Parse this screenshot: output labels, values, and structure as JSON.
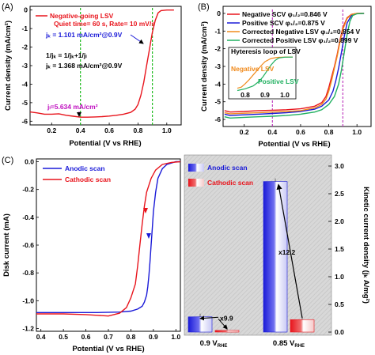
{
  "chart_data": [
    {
      "id": "A",
      "panel_label": "(A)",
      "type": "line",
      "xlabel": "Potential (V vs RHE)",
      "ylabel": "Current density (mA/cm²)",
      "xlim": [
        0.05,
        1.1
      ],
      "ylim": [
        -6.2,
        0.2
      ],
      "xticks": [
        "0.2",
        "0.4",
        "0.6",
        "0.8",
        "1.0"
      ],
      "xtick_values": [
        0.2,
        0.4,
        0.6,
        0.8,
        1.0
      ],
      "yticks": [
        "0",
        "-1",
        "-2",
        "-3",
        "-4",
        "-5",
        "-6"
      ],
      "ytick_values": [
        0,
        -1,
        -2,
        -3,
        -4,
        -5,
        -6
      ],
      "series": [
        {
          "name": "Negative-going LSV",
          "color": "#e8141c",
          "points": [
            [
              0.05,
              -5.5
            ],
            [
              0.1,
              -5.55
            ],
            [
              0.15,
              -5.62
            ],
            [
              0.2,
              -5.62
            ],
            [
              0.25,
              -5.6
            ],
            [
              0.3,
              -5.68
            ],
            [
              0.35,
              -5.73
            ],
            [
              0.4,
              -5.78
            ],
            [
              0.45,
              -5.78
            ],
            [
              0.5,
              -5.77
            ],
            [
              0.55,
              -5.75
            ],
            [
              0.6,
              -5.72
            ],
            [
              0.65,
              -5.68
            ],
            [
              0.7,
              -5.62
            ],
            [
              0.75,
              -5.52
            ],
            [
              0.78,
              -5.35
            ],
            [
              0.8,
              -5.1
            ],
            [
              0.82,
              -4.6
            ],
            [
              0.84,
              -3.9
            ],
            [
              0.86,
              -3.0
            ],
            [
              0.88,
              -2.1
            ],
            [
              0.9,
              -1.2
            ],
            [
              0.92,
              -0.55
            ],
            [
              0.94,
              -0.15
            ],
            [
              0.96,
              -0.03
            ],
            [
              1.0,
              0.0
            ],
            [
              1.05,
              0.0
            ]
          ]
        }
      ],
      "legend_text": "Negative-going LSV",
      "legend_sub": "Quiet time= 60 s, Rate= 10 mV/s",
      "annotations": {
        "jk_point": "jₖ = 1.101 mA/cm²@0.9V",
        "formula": "1/jₖ = 1/jₖ+1/jₗ",
        "jk_value": "jₖ = 1.368 mA/cm²@0.9V",
        "jl_value": "jₗ=5.634 mA/cm²"
      },
      "guide_lines": [
        {
          "x": 0.9,
          "color": "#22bb22"
        },
        {
          "x": 0.4,
          "color": "#22bb22"
        }
      ]
    },
    {
      "id": "B",
      "panel_label": "(B)",
      "type": "line",
      "xlabel": "Potential (V vs RHE)",
      "ylabel": "Current density (mA/cm²)",
      "xlim": [
        0.05,
        1.1
      ],
      "ylim": [
        -6.4,
        0.4
      ],
      "xticks": [
        "0.2",
        "0.4",
        "0.6",
        "0.8",
        "1.0"
      ],
      "xtick_values": [
        0.2,
        0.4,
        0.6,
        0.8,
        1.0
      ],
      "yticks": [
        "0",
        "-1",
        "-2",
        "-3",
        "-4",
        "-5",
        "-6"
      ],
      "ytick_values": [
        0,
        -1,
        -2,
        -3,
        -4,
        -5,
        -6
      ],
      "series": [
        {
          "name": "Negative SCV φ₁/₂=0.846 V",
          "color": "#e8141c",
          "points": [
            [
              0.06,
              -5.5
            ],
            [
              0.1,
              -5.58
            ],
            [
              0.2,
              -5.55
            ],
            [
              0.3,
              -5.5
            ],
            [
              0.4,
              -5.48
            ],
            [
              0.5,
              -5.45
            ],
            [
              0.6,
              -5.4
            ],
            [
              0.7,
              -5.25
            ],
            [
              0.75,
              -5.05
            ],
            [
              0.78,
              -4.7
            ],
            [
              0.8,
              -4.2
            ],
            [
              0.82,
              -3.6
            ],
            [
              0.84,
              -3.0
            ],
            [
              0.86,
              -2.3
            ],
            [
              0.88,
              -1.5
            ],
            [
              0.9,
              -0.8
            ],
            [
              0.93,
              -0.25
            ],
            [
              0.96,
              -0.05
            ],
            [
              1.0,
              0.0
            ],
            [
              1.05,
              0.0
            ]
          ]
        },
        {
          "name": "Positive SCV φ₁/₂=0.875 V",
          "color": "#1a1ad8",
          "points": [
            [
              0.06,
              -5.7
            ],
            [
              0.1,
              -5.78
            ],
            [
              0.2,
              -5.74
            ],
            [
              0.3,
              -5.7
            ],
            [
              0.4,
              -5.66
            ],
            [
              0.5,
              -5.62
            ],
            [
              0.6,
              -5.55
            ],
            [
              0.7,
              -5.42
            ],
            [
              0.75,
              -5.25
            ],
            [
              0.8,
              -4.9
            ],
            [
              0.83,
              -4.4
            ],
            [
              0.85,
              -3.8
            ],
            [
              0.87,
              -3.1
            ],
            [
              0.89,
              -2.2
            ],
            [
              0.91,
              -1.3
            ],
            [
              0.93,
              -0.55
            ],
            [
              0.96,
              -0.12
            ],
            [
              1.0,
              -0.01
            ],
            [
              1.05,
              0.0
            ]
          ]
        },
        {
          "name": "Corrected Negative LSV φ₁/₂=0.854 V",
          "color": "#f08a1c",
          "points": [
            [
              0.06,
              -5.62
            ],
            [
              0.1,
              -5.68
            ],
            [
              0.2,
              -5.65
            ],
            [
              0.3,
              -5.62
            ],
            [
              0.4,
              -5.58
            ],
            [
              0.5,
              -5.55
            ],
            [
              0.6,
              -5.5
            ],
            [
              0.7,
              -5.35
            ],
            [
              0.75,
              -5.15
            ],
            [
              0.78,
              -4.85
            ],
            [
              0.8,
              -4.4
            ],
            [
              0.82,
              -3.8
            ],
            [
              0.84,
              -3.1
            ],
            [
              0.86,
              -2.4
            ],
            [
              0.88,
              -1.6
            ],
            [
              0.9,
              -0.9
            ],
            [
              0.93,
              -0.3
            ],
            [
              0.96,
              -0.06
            ],
            [
              1.0,
              0.0
            ],
            [
              1.05,
              0.0
            ]
          ]
        },
        {
          "name": "Corrected Positive LSV φ₁/₂=0.899 V",
          "color": "#20b060",
          "points": [
            [
              0.06,
              -5.85
            ],
            [
              0.1,
              -5.92
            ],
            [
              0.2,
              -5.88
            ],
            [
              0.3,
              -5.85
            ],
            [
              0.4,
              -5.82
            ],
            [
              0.5,
              -5.78
            ],
            [
              0.6,
              -5.7
            ],
            [
              0.7,
              -5.58
            ],
            [
              0.75,
              -5.45
            ],
            [
              0.8,
              -5.15
            ],
            [
              0.84,
              -4.7
            ],
            [
              0.87,
              -4.0
            ],
            [
              0.89,
              -3.2
            ],
            [
              0.91,
              -2.2
            ],
            [
              0.93,
              -1.2
            ],
            [
              0.95,
              -0.45
            ],
            [
              0.97,
              -0.12
            ],
            [
              1.0,
              -0.02
            ],
            [
              1.05,
              0.0
            ]
          ]
        }
      ],
      "guide_lines": [
        {
          "x": 0.9,
          "color": "#c040c0"
        },
        {
          "x": 0.4,
          "color": "#c040c0"
        }
      ],
      "inset": {
        "title": "Hyteresis loop of LSV",
        "xticks": [
          "0.8",
          "0.9",
          "1.0"
        ],
        "xtick_values": [
          0.8,
          0.9,
          1.0
        ],
        "xlim": [
          0.76,
          1.04
        ],
        "ylim": [
          -6.0,
          0.3
        ],
        "labels": [
          {
            "text": "Negative LSV",
            "color": "#f08a1c"
          },
          {
            "text": "Positive LSV",
            "color": "#20b060"
          }
        ],
        "series": [
          {
            "color": "#f08a1c",
            "points": [
              [
                0.76,
                -5.4
              ],
              [
                0.78,
                -5.2
              ],
              [
                0.8,
                -4.6
              ],
              [
                0.82,
                -3.9
              ],
              [
                0.84,
                -3.1
              ],
              [
                0.86,
                -2.3
              ],
              [
                0.88,
                -1.5
              ],
              [
                0.9,
                -0.8
              ],
              [
                0.93,
                -0.25
              ],
              [
                0.96,
                -0.05
              ],
              [
                1.0,
                0.0
              ],
              [
                1.04,
                0.0
              ]
            ]
          },
          {
            "color": "#20b060",
            "points": [
              [
                0.76,
                -5.8
              ],
              [
                0.8,
                -5.5
              ],
              [
                0.84,
                -5.0
              ],
              [
                0.87,
                -4.2
              ],
              [
                0.89,
                -3.4
              ],
              [
                0.91,
                -2.4
              ],
              [
                0.93,
                -1.4
              ],
              [
                0.95,
                -0.6
              ],
              [
                0.97,
                -0.15
              ],
              [
                1.0,
                -0.02
              ],
              [
                1.04,
                0.0
              ]
            ]
          }
        ]
      }
    },
    {
      "id": "C",
      "panel_label": "(C)",
      "type": "line",
      "xlabel": "Potential (V vs RHE)",
      "ylabel": "Disk current (mA)",
      "xlim": [
        0.38,
        1.02
      ],
      "ylim": [
        -1.22,
        0.02
      ],
      "xticks": [
        "0.4",
        "0.5",
        "0.6",
        "0.7",
        "0.8",
        "0.9",
        "1.0"
      ],
      "xtick_values": [
        0.4,
        0.5,
        0.6,
        0.7,
        0.8,
        0.9,
        1.0
      ],
      "yticks": [
        "0.0",
        "-0.2",
        "-0.4",
        "-0.6",
        "-0.8",
        "-1.0",
        "-1.2"
      ],
      "ytick_values": [
        0.0,
        -0.2,
        -0.4,
        -0.6,
        -0.8,
        -1.0,
        -1.2
      ],
      "series": [
        {
          "name": "Anodic scan",
          "color": "#1a1ad8",
          "points": [
            [
              0.38,
              -1.085
            ],
            [
              0.45,
              -1.085
            ],
            [
              0.55,
              -1.085
            ],
            [
              0.65,
              -1.085
            ],
            [
              0.75,
              -1.082
            ],
            [
              0.8,
              -1.075
            ],
            [
              0.83,
              -1.06
            ],
            [
              0.85,
              -1.04
            ],
            [
              0.86,
              -1.01
            ],
            [
              0.87,
              -0.96
            ],
            [
              0.875,
              -0.9
            ],
            [
              0.88,
              -0.82
            ],
            [
              0.885,
              -0.72
            ],
            [
              0.89,
              -0.6
            ],
            [
              0.895,
              -0.48
            ],
            [
              0.9,
              -0.36
            ],
            [
              0.91,
              -0.22
            ],
            [
              0.92,
              -0.12
            ],
            [
              0.94,
              -0.05
            ],
            [
              0.96,
              -0.02
            ],
            [
              1.0,
              0.0
            ],
            [
              1.02,
              0.0
            ]
          ]
        },
        {
          "name": "Cathodic scan",
          "color": "#e8141c",
          "points": [
            [
              1.02,
              0.0
            ],
            [
              0.98,
              -0.005
            ],
            [
              0.94,
              -0.02
            ],
            [
              0.91,
              -0.06
            ],
            [
              0.89,
              -0.12
            ],
            [
              0.87,
              -0.22
            ],
            [
              0.86,
              -0.32
            ],
            [
              0.85,
              -0.45
            ],
            [
              0.84,
              -0.6
            ],
            [
              0.83,
              -0.75
            ],
            [
              0.82,
              -0.88
            ],
            [
              0.8,
              -0.98
            ],
            [
              0.78,
              -1.05
            ],
            [
              0.75,
              -1.09
            ],
            [
              0.7,
              -1.11
            ],
            [
              0.65,
              -1.105
            ],
            [
              0.6,
              -1.1
            ],
            [
              0.5,
              -1.095
            ],
            [
              0.45,
              -1.095
            ],
            [
              0.38,
              -1.095
            ]
          ]
        }
      ]
    },
    {
      "id": "D",
      "type": "bar",
      "ylabel": "Kinetic current density (jₖ A/mg²)",
      "ylim": [
        0,
        3.0
      ],
      "yticks": [
        "0.0",
        "0.5",
        "1.0",
        "1.5",
        "2.0",
        "2.5",
        "3.0"
      ],
      "ytick_values": [
        0.0,
        0.5,
        1.0,
        1.5,
        2.0,
        2.5,
        3.0
      ],
      "categories": [
        "0.9 V",
        "0.85 V"
      ],
      "category_sub": "RHE",
      "series": [
        {
          "name": "Anodic scan",
          "color": "#1a1ad8",
          "values": [
            0.275,
            2.72
          ]
        },
        {
          "name": "Cathodic scan",
          "color": "#e8141c",
          "values": [
            0.03,
            0.225
          ]
        }
      ],
      "annotations": [
        "x9.9",
        "x12.2"
      ]
    }
  ],
  "arrow_label": ""
}
